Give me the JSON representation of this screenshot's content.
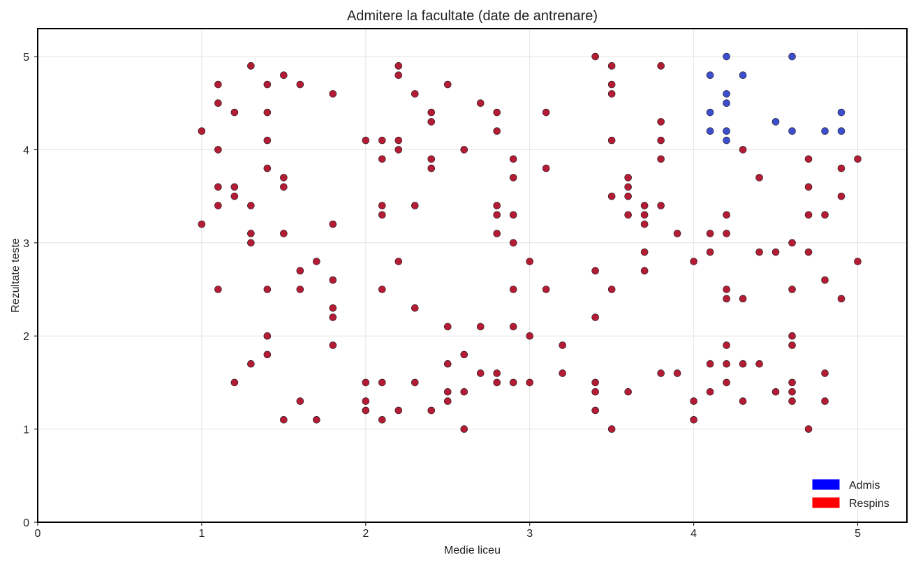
{
  "chart_data": {
    "type": "scatter",
    "title": "Admitere la facultate (date de antrenare)",
    "xlabel": "Medie liceu",
    "ylabel": "Rezultate teste",
    "xlim": [
      0,
      5.3
    ],
    "ylim": [
      0,
      5.3
    ],
    "xticks": [
      0,
      1,
      2,
      3,
      4,
      5
    ],
    "yticks": [
      0,
      1,
      2,
      3,
      4,
      5
    ],
    "grid": true,
    "legend_position": "bottom-right",
    "legend": [
      {
        "label": "Admis",
        "color": "#0000ff"
      },
      {
        "label": "Respins",
        "color": "#ff0000"
      }
    ],
    "series": [
      {
        "name": "Admis",
        "color": "#3344cc",
        "points": [
          [
            4.1,
            4.8
          ],
          [
            4.2,
            5.0
          ],
          [
            4.3,
            4.8
          ],
          [
            4.6,
            5.0
          ],
          [
            4.1,
            4.4
          ],
          [
            4.2,
            4.6
          ],
          [
            4.2,
            4.5
          ],
          [
            4.5,
            4.3
          ],
          [
            4.1,
            4.2
          ],
          [
            4.2,
            4.2
          ],
          [
            4.2,
            4.1
          ],
          [
            4.6,
            4.2
          ],
          [
            4.8,
            4.2
          ],
          [
            4.9,
            4.2
          ],
          [
            4.9,
            4.4
          ]
        ]
      },
      {
        "name": "Respins",
        "color": "#b0102a",
        "points": [
          [
            1.0,
            4.2
          ],
          [
            1.0,
            3.2
          ],
          [
            1.1,
            4.7
          ],
          [
            1.1,
            4.5
          ],
          [
            1.1,
            4.0
          ],
          [
            1.1,
            3.6
          ],
          [
            1.1,
            3.4
          ],
          [
            1.1,
            2.5
          ],
          [
            1.2,
            4.4
          ],
          [
            1.2,
            3.6
          ],
          [
            1.2,
            3.5
          ],
          [
            1.2,
            1.5
          ],
          [
            1.3,
            4.9
          ],
          [
            1.3,
            3.4
          ],
          [
            1.3,
            3.1
          ],
          [
            1.3,
            3.0
          ],
          [
            1.3,
            1.7
          ],
          [
            1.4,
            4.7
          ],
          [
            1.4,
            4.4
          ],
          [
            1.4,
            4.1
          ],
          [
            1.4,
            3.8
          ],
          [
            1.4,
            2.5
          ],
          [
            1.4,
            2.0
          ],
          [
            1.4,
            1.8
          ],
          [
            1.5,
            4.8
          ],
          [
            1.5,
            3.7
          ],
          [
            1.5,
            3.6
          ],
          [
            1.5,
            3.1
          ],
          [
            1.5,
            1.1
          ],
          [
            1.6,
            4.7
          ],
          [
            1.6,
            2.7
          ],
          [
            1.6,
            2.5
          ],
          [
            1.6,
            1.3
          ],
          [
            1.7,
            2.8
          ],
          [
            1.7,
            1.1
          ],
          [
            1.8,
            4.6
          ],
          [
            1.8,
            3.2
          ],
          [
            1.8,
            2.6
          ],
          [
            1.8,
            2.3
          ],
          [
            1.8,
            2.2
          ],
          [
            1.8,
            1.9
          ],
          [
            2.0,
            4.1
          ],
          [
            2.0,
            1.5
          ],
          [
            2.0,
            1.3
          ],
          [
            2.0,
            1.2
          ],
          [
            2.1,
            4.1
          ],
          [
            2.1,
            3.9
          ],
          [
            2.1,
            3.4
          ],
          [
            2.1,
            3.3
          ],
          [
            2.1,
            2.5
          ],
          [
            2.1,
            1.5
          ],
          [
            2.1,
            1.1
          ],
          [
            2.2,
            4.9
          ],
          [
            2.2,
            4.8
          ],
          [
            2.2,
            4.1
          ],
          [
            2.2,
            4.0
          ],
          [
            2.2,
            2.8
          ],
          [
            2.2,
            1.2
          ],
          [
            2.3,
            4.6
          ],
          [
            2.3,
            3.4
          ],
          [
            2.3,
            2.3
          ],
          [
            2.3,
            1.5
          ],
          [
            2.4,
            4.4
          ],
          [
            2.4,
            4.3
          ],
          [
            2.4,
            3.9
          ],
          [
            2.4,
            3.8
          ],
          [
            2.4,
            1.2
          ],
          [
            2.5,
            4.7
          ],
          [
            2.5,
            2.1
          ],
          [
            2.5,
            1.7
          ],
          [
            2.5,
            1.4
          ],
          [
            2.5,
            1.3
          ],
          [
            2.6,
            4.0
          ],
          [
            2.6,
            1.8
          ],
          [
            2.6,
            1.4
          ],
          [
            2.6,
            1.0
          ],
          [
            2.7,
            4.5
          ],
          [
            2.7,
            2.1
          ],
          [
            2.7,
            1.6
          ],
          [
            2.8,
            4.4
          ],
          [
            2.8,
            4.2
          ],
          [
            2.8,
            3.4
          ],
          [
            2.8,
            3.3
          ],
          [
            2.8,
            3.1
          ],
          [
            2.8,
            1.6
          ],
          [
            2.8,
            1.5
          ],
          [
            2.9,
            3.9
          ],
          [
            2.9,
            3.7
          ],
          [
            2.9,
            3.3
          ],
          [
            2.9,
            3.0
          ],
          [
            2.9,
            2.5
          ],
          [
            2.9,
            2.1
          ],
          [
            2.9,
            1.5
          ],
          [
            3.0,
            2.8
          ],
          [
            3.0,
            2.0
          ],
          [
            3.0,
            1.5
          ],
          [
            3.1,
            4.4
          ],
          [
            3.1,
            3.8
          ],
          [
            3.1,
            2.5
          ],
          [
            3.2,
            1.9
          ],
          [
            3.2,
            1.6
          ],
          [
            3.4,
            5.0
          ],
          [
            3.4,
            2.7
          ],
          [
            3.4,
            2.2
          ],
          [
            3.4,
            1.5
          ],
          [
            3.4,
            1.4
          ],
          [
            3.4,
            1.2
          ],
          [
            3.5,
            4.9
          ],
          [
            3.5,
            4.7
          ],
          [
            3.5,
            4.6
          ],
          [
            3.5,
            4.1
          ],
          [
            3.5,
            3.5
          ],
          [
            3.5,
            2.5
          ],
          [
            3.5,
            1.0
          ],
          [
            3.6,
            3.7
          ],
          [
            3.6,
            3.6
          ],
          [
            3.6,
            3.5
          ],
          [
            3.6,
            3.3
          ],
          [
            3.6,
            1.4
          ],
          [
            3.7,
            3.4
          ],
          [
            3.7,
            3.3
          ],
          [
            3.7,
            3.2
          ],
          [
            3.7,
            2.9
          ],
          [
            3.7,
            2.7
          ],
          [
            3.8,
            4.9
          ],
          [
            3.8,
            4.3
          ],
          [
            3.8,
            4.1
          ],
          [
            3.8,
            3.9
          ],
          [
            3.8,
            3.4
          ],
          [
            3.8,
            1.6
          ],
          [
            3.9,
            3.1
          ],
          [
            3.9,
            1.6
          ],
          [
            4.0,
            2.8
          ],
          [
            4.0,
            1.3
          ],
          [
            4.0,
            1.1
          ],
          [
            4.1,
            3.1
          ],
          [
            4.1,
            2.9
          ],
          [
            4.1,
            1.7
          ],
          [
            4.1,
            1.4
          ],
          [
            4.2,
            3.3
          ],
          [
            4.2,
            3.1
          ],
          [
            4.2,
            2.5
          ],
          [
            4.2,
            2.4
          ],
          [
            4.2,
            1.9
          ],
          [
            4.2,
            1.7
          ],
          [
            4.2,
            1.5
          ],
          [
            4.3,
            4.0
          ],
          [
            4.3,
            2.4
          ],
          [
            4.3,
            1.7
          ],
          [
            4.3,
            1.3
          ],
          [
            4.4,
            3.7
          ],
          [
            4.4,
            2.9
          ],
          [
            4.4,
            1.7
          ],
          [
            4.5,
            2.9
          ],
          [
            4.5,
            1.4
          ],
          [
            4.6,
            3.0
          ],
          [
            4.6,
            2.5
          ],
          [
            4.6,
            2.0
          ],
          [
            4.6,
            1.9
          ],
          [
            4.6,
            1.5
          ],
          [
            4.6,
            1.4
          ],
          [
            4.6,
            1.3
          ],
          [
            4.7,
            3.9
          ],
          [
            4.7,
            3.6
          ],
          [
            4.7,
            3.3
          ],
          [
            4.7,
            2.9
          ],
          [
            4.7,
            1.0
          ],
          [
            4.8,
            3.3
          ],
          [
            4.8,
            2.6
          ],
          [
            4.8,
            1.6
          ],
          [
            4.8,
            1.3
          ],
          [
            4.9,
            3.8
          ],
          [
            4.9,
            3.5
          ],
          [
            4.9,
            2.4
          ],
          [
            5.0,
            3.9
          ],
          [
            5.0,
            2.8
          ]
        ]
      }
    ]
  }
}
